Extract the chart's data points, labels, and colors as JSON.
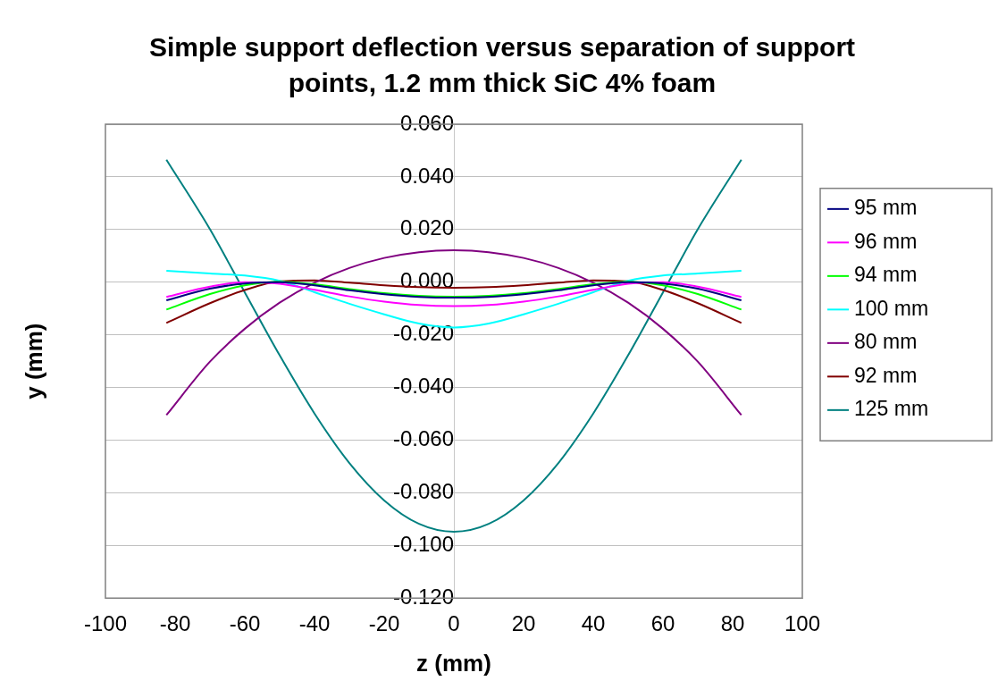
{
  "chart_data": {
    "type": "line",
    "title": "Simple support deflection versus separation of support points, 1.2 mm thick SiC 4% foam",
    "xlabel": "z (mm)",
    "ylabel": "y (mm)",
    "x": [
      -82.5,
      -70,
      -60,
      -50,
      -40,
      -30,
      -20,
      -10,
      0,
      10,
      20,
      30,
      40,
      50,
      60,
      70,
      82.5
    ],
    "xlim": [
      -100,
      100
    ],
    "xticks": [
      -100,
      -80,
      -60,
      -40,
      -20,
      0,
      20,
      40,
      60,
      80,
      100
    ],
    "ylim": [
      -0.12,
      0.06
    ],
    "yticks": [
      {
        "value": -0.12,
        "label": "-0.120"
      },
      {
        "value": -0.1,
        "label": "-0.100"
      },
      {
        "value": -0.08,
        "label": "-0.080"
      },
      {
        "value": -0.06,
        "label": "-0.060"
      },
      {
        "value": -0.04,
        "label": "-0.040"
      },
      {
        "value": -0.02,
        "label": "-0.020"
      },
      {
        "value": 0,
        "label": "0.000"
      },
      {
        "value": 0.02,
        "label": "0.020"
      },
      {
        "value": 0.04,
        "label": "0.040"
      },
      {
        "value": 0.06,
        "label": "0.060"
      }
    ],
    "grid": "y",
    "legend": "right",
    "marker": "none",
    "line_style": "solid",
    "series": [
      {
        "name": "95 mm",
        "color": "#000080",
        "values": [
          -0.0069,
          -0.0025,
          -0.0005,
          0,
          -0.0012,
          -0.0031,
          -0.0046,
          -0.0056,
          -0.0059,
          -0.0056,
          -0.0046,
          -0.0031,
          -0.0012,
          0,
          -0.0005,
          -0.0025,
          -0.0069
        ]
      },
      {
        "name": "96 mm",
        "color": "#ff00ff",
        "values": [
          -0.0056,
          -0.0017,
          0,
          -0.0006,
          -0.0029,
          -0.0054,
          -0.0074,
          -0.0087,
          -0.0091,
          -0.0087,
          -0.0074,
          -0.0054,
          -0.0029,
          -0.0006,
          0,
          -0.0017,
          -0.0056
        ]
      },
      {
        "name": "94 mm",
        "color": "#00ff00",
        "values": [
          -0.0104,
          -0.0045,
          -0.0012,
          0.0002,
          -0.0008,
          -0.0026,
          -0.0042,
          -0.0052,
          -0.0055,
          -0.0052,
          -0.0042,
          -0.0026,
          -0.0008,
          0.0002,
          -0.0012,
          -0.0045,
          -0.0104
        ]
      },
      {
        "name": "100 mm",
        "color": "#00ffff",
        "values": [
          0.0043,
          0.0033,
          0.0025,
          0.0005,
          -0.0038,
          -0.0082,
          -0.0122,
          -0.0157,
          -0.0172,
          -0.0157,
          -0.0122,
          -0.0082,
          -0.0038,
          0.0005,
          0.0025,
          0.0033,
          0.0043
        ]
      },
      {
        "name": "80 mm",
        "color": "#800080",
        "values": [
          -0.0505,
          -0.0302,
          -0.0177,
          -0.0078,
          -0.0002,
          0.0054,
          0.0092,
          0.0114,
          0.0121,
          0.0114,
          0.0092,
          0.0054,
          -0.0002,
          -0.0078,
          -0.0177,
          -0.0302,
          -0.0505
        ]
      },
      {
        "name": "92 mm",
        "color": "#800000",
        "values": [
          -0.0155,
          -0.008,
          -0.003,
          0.0003,
          0.0007,
          -0.0002,
          -0.0012,
          -0.0019,
          -0.0021,
          -0.0019,
          -0.0012,
          -0.0002,
          0.0007,
          0.0003,
          -0.003,
          -0.008,
          -0.0155
        ]
      },
      {
        "name": "125 mm",
        "color": "#008080",
        "values": [
          0.0465,
          0.0201,
          -0.0039,
          -0.0278,
          -0.0499,
          -0.0687,
          -0.0829,
          -0.0918,
          -0.0948,
          -0.0918,
          -0.0829,
          -0.0687,
          -0.0499,
          -0.0278,
          -0.0039,
          0.0201,
          0.0465
        ]
      }
    ]
  }
}
